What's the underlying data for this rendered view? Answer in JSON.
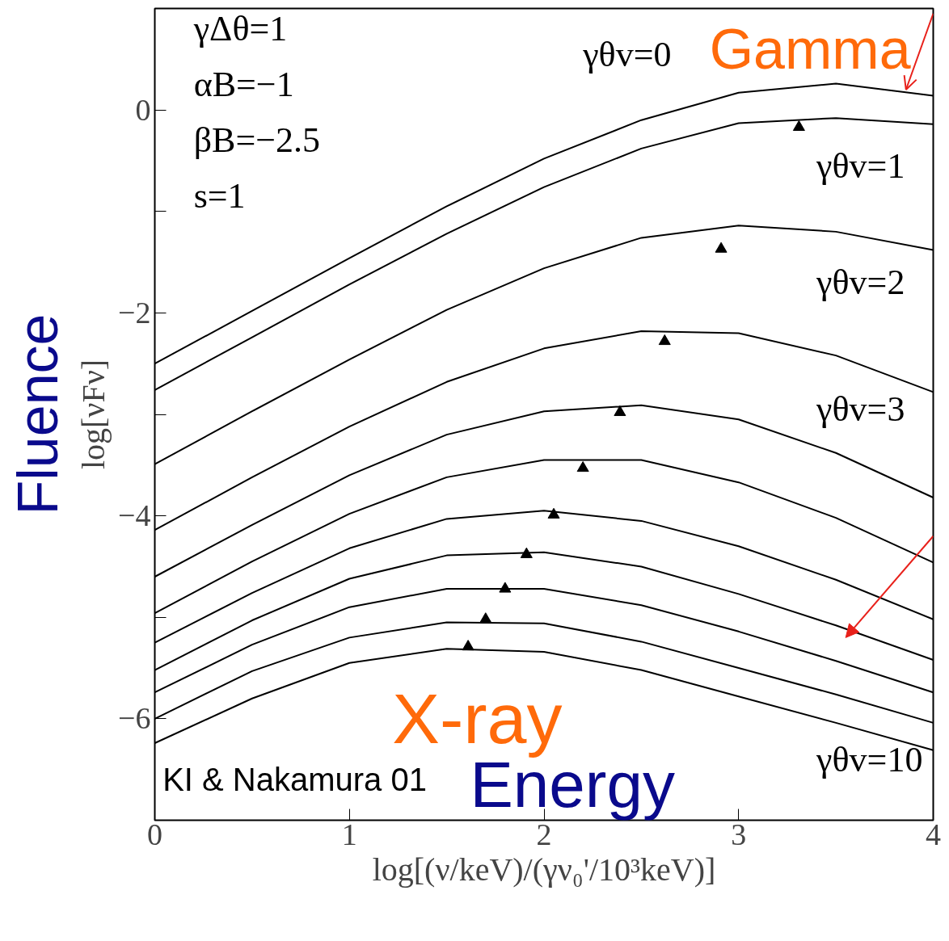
{
  "chart_data": {
    "type": "line",
    "xlabel": "log[(ν/keV)/(γν₀'/10³keV)]",
    "ylabel": "log[νFν]",
    "x": [
      0,
      0.5,
      1,
      1.5,
      2,
      2.5,
      3,
      3.5,
      4
    ],
    "xlim": [
      0,
      4
    ],
    "ylim": [
      -7,
      1
    ],
    "xticks": [
      0,
      1,
      2,
      3,
      4
    ],
    "yticks": [
      -6,
      {
        "value": -5,
        "label": null
      },
      -4,
      {
        "value": -3,
        "label": null
      },
      -2,
      {
        "value": -1,
        "label": null
      },
      0
    ],
    "line_style": "solid",
    "marker": "none",
    "grid": false,
    "series": [
      {
        "color": "#000000",
        "values": [
          -2.5,
          -1.98,
          -1.46,
          -0.95,
          -0.48,
          -0.1,
          0.17,
          0.26,
          0.14
        ]
      },
      {
        "color": "#000000",
        "values": [
          -2.76,
          -2.24,
          -1.72,
          -1.22,
          -0.76,
          -0.38,
          -0.13,
          -0.08,
          -0.14
        ]
      },
      {
        "color": "#000000",
        "values": [
          -3.49,
          -2.97,
          -2.46,
          -1.97,
          -1.56,
          -1.26,
          -1.14,
          -1.2,
          -1.38
        ]
      },
      {
        "color": "#000000",
        "values": [
          -4.14,
          -3.62,
          -3.12,
          -2.68,
          -2.35,
          -2.18,
          -2.2,
          -2.42,
          -2.78
        ]
      },
      {
        "color": "#000000",
        "values": [
          -4.6,
          -4.09,
          -3.6,
          -3.2,
          -2.97,
          -2.91,
          -3.05,
          -3.38,
          -3.82
        ]
      },
      {
        "color": "#000000",
        "values": [
          -4.96,
          -4.45,
          -3.98,
          -3.62,
          -3.45,
          -3.45,
          -3.67,
          -4.02,
          -4.46
        ]
      },
      {
        "color": "#000000",
        "values": [
          -5.25,
          -4.76,
          -4.32,
          -4.03,
          -3.95,
          -4.05,
          -4.3,
          -4.63,
          -5.02
        ]
      },
      {
        "color": "#000000",
        "values": [
          -5.52,
          -5.03,
          -4.62,
          -4.39,
          -4.36,
          -4.5,
          -4.77,
          -5.08,
          -5.42
        ]
      },
      {
        "color": "#000000",
        "values": [
          -5.74,
          -5.27,
          -4.9,
          -4.72,
          -4.72,
          -4.88,
          -5.14,
          -5.43,
          -5.74
        ]
      },
      {
        "color": "#000000",
        "values": [
          -6.0,
          -5.53,
          -5.2,
          -5.05,
          -5.06,
          -5.24,
          -5.5,
          -5.76,
          -6.04
        ]
      },
      {
        "color": "#000000",
        "values": [
          -6.24,
          -5.8,
          -5.45,
          -5.31,
          -5.34,
          -5.52,
          -5.78,
          -6.04,
          -6.31
        ]
      },
      {
        "type": "scatter",
        "marker": "triangle",
        "color": "#000000",
        "x": [
          3.31,
          2.91,
          2.62,
          2.39,
          2.2,
          2.05,
          1.91,
          1.8,
          1.7,
          1.61
        ],
        "values": [
          -0.17,
          -1.37,
          -2.28,
          -2.98,
          -3.53,
          -3.99,
          -4.38,
          -4.72,
          -5.02,
          -5.29
        ]
      }
    ],
    "annotations": [
      "γΔθ=1",
      "αB=−1",
      "βB=−2.5",
      "s=1",
      "γθv=0",
      "γθv=1",
      "γθv=2",
      "γθv=3",
      "γθv=10",
      "Gamma",
      "X-ray",
      "Energy",
      "Fluence",
      "KI & Nakamura 01"
    ]
  }
}
